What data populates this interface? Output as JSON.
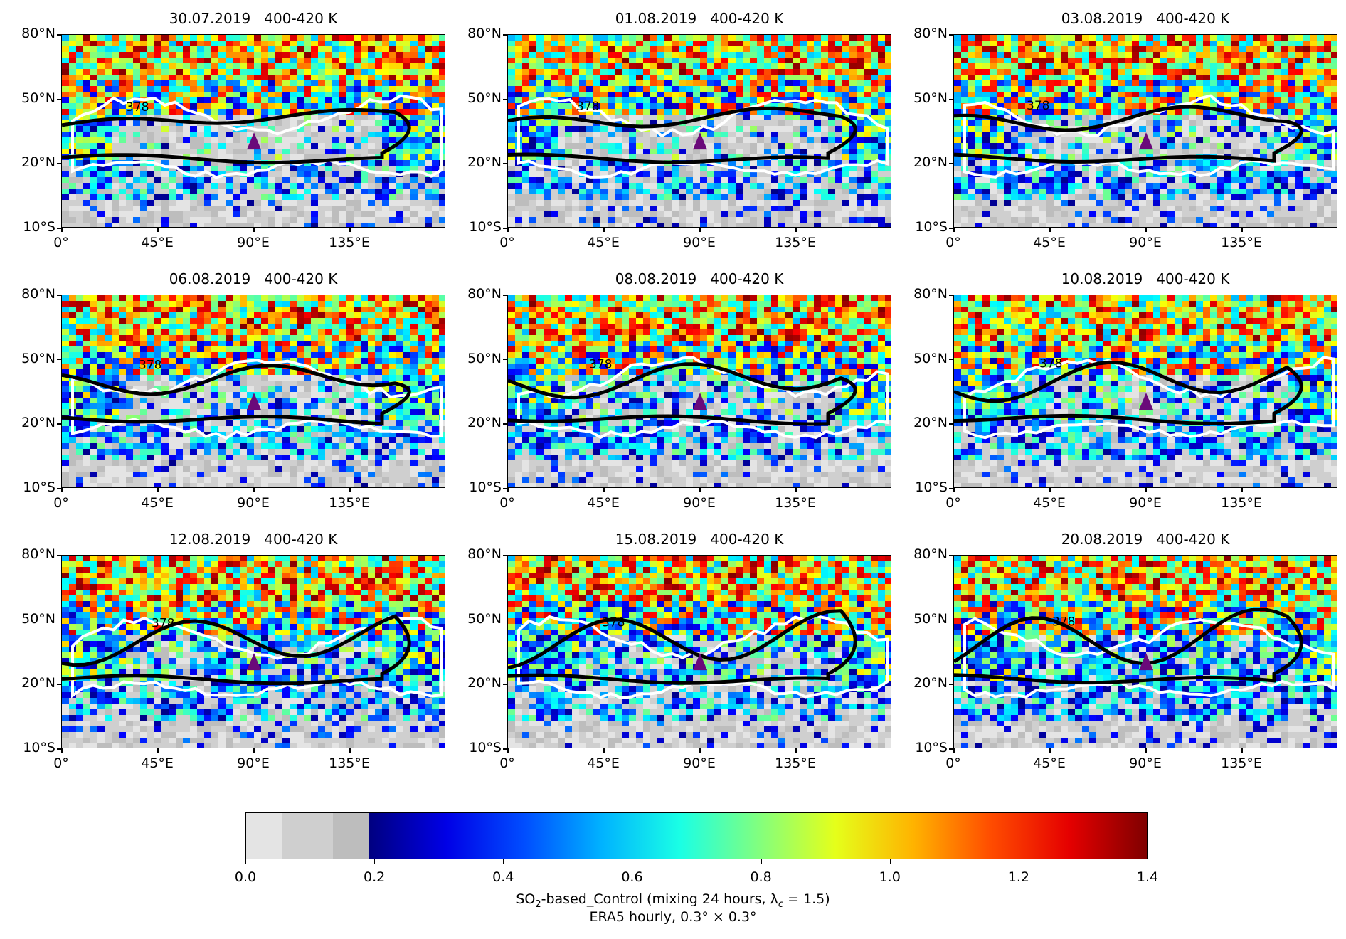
{
  "chart_data": {
    "type": "heatmap",
    "panel_layout": "3x3 grid",
    "panels": [
      {
        "title": "30.07.2019   400-420 K",
        "contour_label": "378",
        "marker_lon": 90,
        "marker_lat": 30
      },
      {
        "title": "01.08.2019   400-420 K",
        "contour_label": "378",
        "marker_lon": 90,
        "marker_lat": 30
      },
      {
        "title": "03.08.2019   400-420 K",
        "contour_label": "378",
        "marker_lon": 90,
        "marker_lat": 30
      },
      {
        "title": "06.08.2019   400-420 K",
        "contour_label": "378",
        "marker_lon": 90,
        "marker_lat": 30
      },
      {
        "title": "08.08.2019   400-420 K",
        "contour_label": "378",
        "marker_lon": 90,
        "marker_lat": 30
      },
      {
        "title": "10.08.2019   400-420 K",
        "contour_label": "378",
        "marker_lon": 90,
        "marker_lat": 30
      },
      {
        "title": "12.08.2019   400-420 K",
        "contour_label": "378",
        "marker_lon": 90,
        "marker_lat": 30
      },
      {
        "title": "15.08.2019   400-420 K",
        "contour_label": "378",
        "marker_lon": 90,
        "marker_lat": 30
      },
      {
        "title": "20.08.2019   400-420 K",
        "contour_label": "378",
        "marker_lon": 90,
        "marker_lat": 30
      }
    ],
    "x_axis": {
      "ticks": [
        "0°",
        "45°E",
        "90°E",
        "135°E"
      ],
      "tick_values": [
        0,
        45,
        90,
        135
      ],
      "range": [
        0,
        180
      ]
    },
    "y_axis": {
      "ticks": [
        "10°S",
        "20°N",
        "50°N",
        "80°N"
      ],
      "tick_values": [
        -10,
        20,
        50,
        80
      ],
      "range": [
        -10,
        80
      ]
    },
    "colorbar": {
      "ticks": [
        "0.0",
        "0.2",
        "0.4",
        "0.6",
        "0.8",
        "1.0",
        "1.2",
        "1.4"
      ],
      "tick_values": [
        0.0,
        0.2,
        0.4,
        0.6,
        0.8,
        1.0,
        1.2,
        1.4
      ],
      "range": [
        0.0,
        1.4
      ],
      "grey_levels": [
        0.0,
        0.055,
        0.135,
        0.19
      ],
      "grey_colors": [
        "#e4e4e4",
        "#cfcfcf",
        "#bdbdbd"
      ],
      "colormap": "jet",
      "label_line1": "SO",
      "label_sub": "2",
      "label_line1_rest": "-based_Control  (mixing 24 hours, λ",
      "label_sub2": "c",
      "label_line1_end": " = 1.5)",
      "label_line2": "ERA5 hourly, 0.3° × 0.3°"
    },
    "colors": {
      "contour_primary": "#000000",
      "contour_secondary": "#ffffff",
      "marker": "#6a0a7a"
    }
  }
}
